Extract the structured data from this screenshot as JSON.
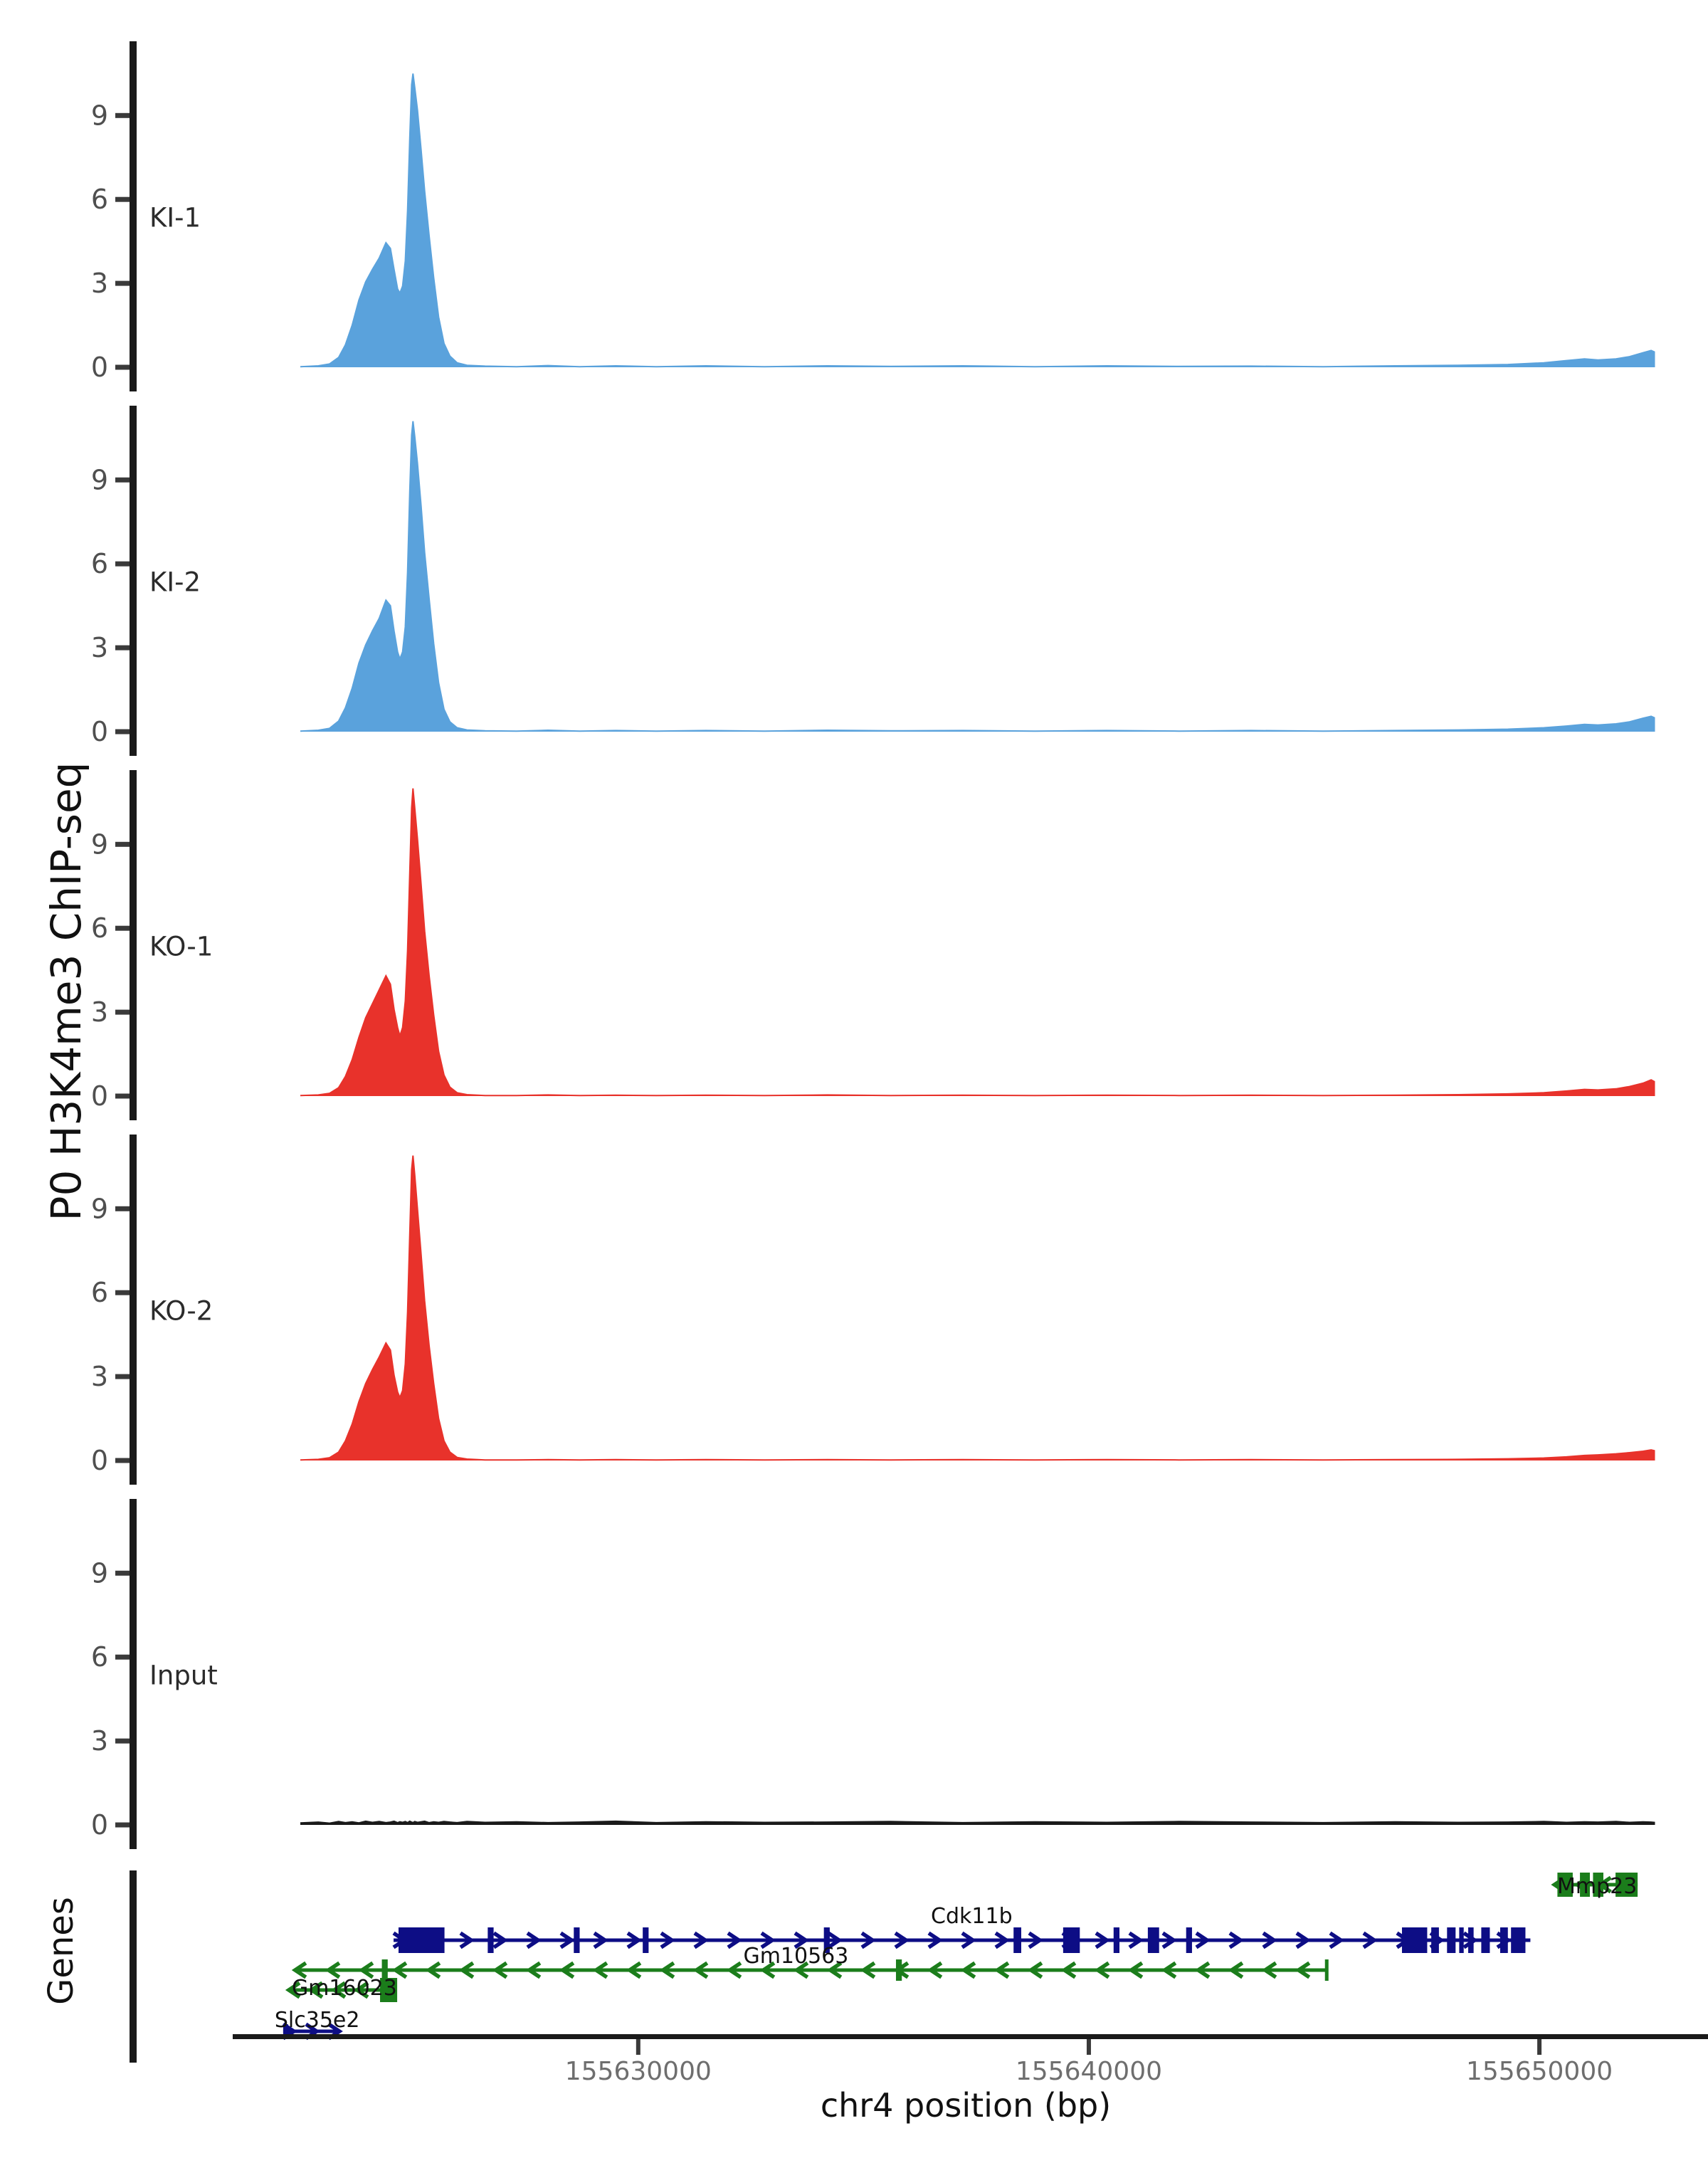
{
  "figure": {
    "ylabel": "P0 H3K4me3 ChIP-seq",
    "xlabel": "chr4 position (bp)",
    "genes_title": "Genes",
    "colors": {
      "ki_fill": "#5AA2DC",
      "ko_fill": "#E8322B",
      "input_fill": "#1A1A1A",
      "gene_forward": "#0D0D85",
      "gene_reverse": "#1B7D1B",
      "axis_bar": "#1A1A1A",
      "tick_mark": "#3A3A3A",
      "y_tick_label": "#4F4F4F",
      "x_tick_label": "#6E6E6E",
      "track_label": "#2B2B2B",
      "gene_label": "#111111",
      "axis_title": "#111111"
    }
  },
  "chart_data": {
    "type": "area",
    "title": "",
    "xlabel": "chr4 position (bp)",
    "ylabel": "P0 H3K4me3 ChIP-seq",
    "x_domain": [
      155621000,
      155654200
    ],
    "x_data_range": [
      155622500,
      155652550
    ],
    "ylim": [
      0,
      11.6
    ],
    "y_ticks": [
      "0",
      "3",
      "6",
      "9"
    ],
    "y_tick_values": [
      0,
      3,
      6,
      9
    ],
    "grid": false,
    "legend_position": "none",
    "x_ticks": [
      {
        "value": 155630000,
        "label": "155630000"
      },
      {
        "value": 155640000,
        "label": "155640000"
      },
      {
        "value": 155650000,
        "label": "155650000"
      }
    ],
    "x_bp": [
      155622500,
      155622900,
      155623150,
      155623350,
      155623500,
      155623650,
      155623800,
      155623950,
      155624100,
      155624250,
      155624400,
      155624500,
      155624580,
      155624660,
      155624710,
      155624770,
      155624830,
      155624880,
      155624930,
      155624970,
      155625000,
      155625040,
      155625100,
      155625180,
      155625260,
      155625360,
      155625460,
      155625570,
      155625690,
      155625820,
      155625980,
      155626200,
      155626600,
      155627300,
      155628000,
      155628700,
      155629500,
      155630400,
      155631500,
      155632800,
      155634200,
      155635600,
      155637200,
      155638800,
      155640400,
      155642000,
      155643600,
      155645200,
      155646800,
      155648200,
      155649300,
      155650100,
      155650600,
      155651000,
      155651300,
      155651700,
      155652000,
      155652300,
      155652480,
      155652550
    ],
    "tracks": [
      {
        "label": "KI-1",
        "group": "KI",
        "color": "#5AA2DC",
        "values": [
          0.02,
          0.05,
          0.12,
          0.35,
          0.8,
          1.5,
          2.4,
          3.05,
          3.5,
          3.9,
          4.45,
          4.25,
          3.5,
          2.8,
          2.65,
          2.9,
          3.8,
          5.6,
          8.2,
          10.1,
          10.5,
          10.0,
          9.2,
          7.8,
          6.3,
          4.7,
          3.2,
          1.8,
          0.85,
          0.4,
          0.16,
          0.07,
          0.04,
          0.02,
          0.06,
          0.02,
          0.05,
          0.02,
          0.05,
          0.02,
          0.05,
          0.03,
          0.05,
          0.02,
          0.05,
          0.03,
          0.04,
          0.02,
          0.05,
          0.07,
          0.1,
          0.16,
          0.24,
          0.3,
          0.26,
          0.3,
          0.38,
          0.52,
          0.6,
          0.55
        ]
      },
      {
        "label": "KI-2",
        "group": "KI",
        "color": "#5AA2DC",
        "values": [
          0.02,
          0.05,
          0.12,
          0.38,
          0.85,
          1.55,
          2.45,
          3.1,
          3.6,
          4.05,
          4.7,
          4.5,
          3.6,
          2.85,
          2.6,
          2.85,
          3.75,
          5.7,
          8.6,
          10.6,
          11.1,
          10.55,
          9.6,
          8.1,
          6.4,
          4.75,
          3.15,
          1.75,
          0.8,
          0.35,
          0.14,
          0.06,
          0.03,
          0.02,
          0.05,
          0.02,
          0.04,
          0.02,
          0.04,
          0.02,
          0.05,
          0.03,
          0.04,
          0.02,
          0.04,
          0.02,
          0.04,
          0.02,
          0.04,
          0.06,
          0.09,
          0.14,
          0.2,
          0.26,
          0.24,
          0.28,
          0.35,
          0.48,
          0.55,
          0.5
        ]
      },
      {
        "label": "KO-1",
        "group": "KO",
        "color": "#E8322B",
        "values": [
          0.02,
          0.04,
          0.1,
          0.3,
          0.7,
          1.3,
          2.1,
          2.8,
          3.3,
          3.8,
          4.3,
          4.0,
          3.1,
          2.45,
          2.15,
          2.45,
          3.4,
          5.2,
          8.0,
          10.3,
          11.0,
          10.3,
          9.2,
          7.6,
          5.9,
          4.3,
          2.9,
          1.6,
          0.75,
          0.32,
          0.12,
          0.05,
          0.02,
          0.02,
          0.04,
          0.02,
          0.03,
          0.02,
          0.03,
          0.02,
          0.04,
          0.02,
          0.03,
          0.02,
          0.03,
          0.02,
          0.03,
          0.02,
          0.03,
          0.05,
          0.08,
          0.12,
          0.18,
          0.24,
          0.22,
          0.26,
          0.34,
          0.46,
          0.58,
          0.52
        ]
      },
      {
        "label": "KO-2",
        "group": "KO",
        "color": "#E8322B",
        "values": [
          0.02,
          0.04,
          0.1,
          0.3,
          0.7,
          1.3,
          2.1,
          2.75,
          3.25,
          3.7,
          4.2,
          3.95,
          3.05,
          2.45,
          2.25,
          2.5,
          3.45,
          5.3,
          8.1,
          10.4,
          10.9,
          10.2,
          9.0,
          7.4,
          5.7,
          4.1,
          2.75,
          1.5,
          0.7,
          0.3,
          0.11,
          0.05,
          0.02,
          0.02,
          0.03,
          0.02,
          0.03,
          0.02,
          0.03,
          0.02,
          0.03,
          0.02,
          0.03,
          0.02,
          0.03,
          0.02,
          0.03,
          0.02,
          0.03,
          0.04,
          0.06,
          0.09,
          0.13,
          0.18,
          0.2,
          0.24,
          0.28,
          0.33,
          0.38,
          0.35
        ]
      },
      {
        "label": "Input",
        "group": "Input",
        "color": "#1A1A1A",
        "values": [
          0.07,
          0.1,
          0.06,
          0.12,
          0.08,
          0.11,
          0.07,
          0.13,
          0.09,
          0.12,
          0.08,
          0.1,
          0.13,
          0.08,
          0.11,
          0.09,
          0.12,
          0.08,
          0.13,
          0.1,
          0.08,
          0.12,
          0.09,
          0.11,
          0.13,
          0.08,
          0.11,
          0.09,
          0.12,
          0.1,
          0.08,
          0.12,
          0.09,
          0.11,
          0.08,
          0.1,
          0.13,
          0.08,
          0.11,
          0.09,
          0.1,
          0.12,
          0.08,
          0.11,
          0.09,
          0.12,
          0.1,
          0.08,
          0.11,
          0.09,
          0.1,
          0.12,
          0.09,
          0.11,
          0.1,
          0.12,
          0.09,
          0.11,
          0.1,
          0.09
        ]
      }
    ],
    "genes_track": {
      "title": "Genes",
      "genes": [
        {
          "name": "Mmp23",
          "strand": "-",
          "row": 0,
          "color": "#1B7D1B",
          "start": 155650320,
          "end": 155652180,
          "end_bar": false,
          "exons": [
            [
              155650400,
              155650740
            ],
            [
              155650900,
              155651120
            ],
            [
              155651190,
              155651420
            ],
            [
              155651690,
              155652180
            ]
          ],
          "label_pos": 155651280,
          "label_anchor": "middle"
        },
        {
          "name": "Cdk11b",
          "strand": "+",
          "row": 1,
          "color": "#0D0D85",
          "start": 155624570,
          "end": 155649800,
          "end_bar": false,
          "exons": [
            [
              155624680,
              155625700
            ],
            [
              155626660,
              155626790
            ],
            [
              155628570,
              155628700
            ],
            [
              155630100,
              155630230
            ],
            [
              155634120,
              155634250
            ],
            [
              155638330,
              155638500
            ],
            [
              155639430,
              155639800
            ],
            [
              155640550,
              155640680
            ],
            [
              155641310,
              155641560
            ],
            [
              155642160,
              155642290
            ],
            [
              155646950,
              155647510
            ],
            [
              155647600,
              155647770
            ],
            [
              155647950,
              155648140
            ],
            [
              155648220,
              155648320
            ],
            [
              155648420,
              155648540
            ],
            [
              155648710,
              155648900
            ],
            [
              155649130,
              155649300
            ],
            [
              155649370,
              155649690
            ]
          ],
          "label_pos": 155637400,
          "label_anchor": "middle"
        },
        {
          "name": "Gm10563",
          "strand": "-",
          "row": 2,
          "color": "#1B7D1B",
          "start": 155622370,
          "end": 155645280,
          "end_bar": true,
          "exons": [
            [
              155624310,
              155624440
            ],
            [
              155635720,
              155635850
            ]
          ],
          "label_pos": 155633500,
          "label_anchor": "middle"
        },
        {
          "name": "Gm16023",
          "strand": "-",
          "row": 3,
          "color": "#1B7D1B",
          "start": 155622230,
          "end": 155624290,
          "end_bar": false,
          "exons": [
            [
              155624270,
              155624650
            ]
          ],
          "label_pos": 155622310,
          "label_anchor": "start"
        },
        {
          "name": "Slc35e2",
          "strand": "+",
          "row": 4,
          "color": "#0D0D85",
          "start": 155622120,
          "end": 155623350,
          "end_bar": false,
          "exons": [
            [
              155622120,
              155622230
            ]
          ],
          "label_pos": 155621930,
          "label_anchor": "start"
        }
      ]
    }
  }
}
